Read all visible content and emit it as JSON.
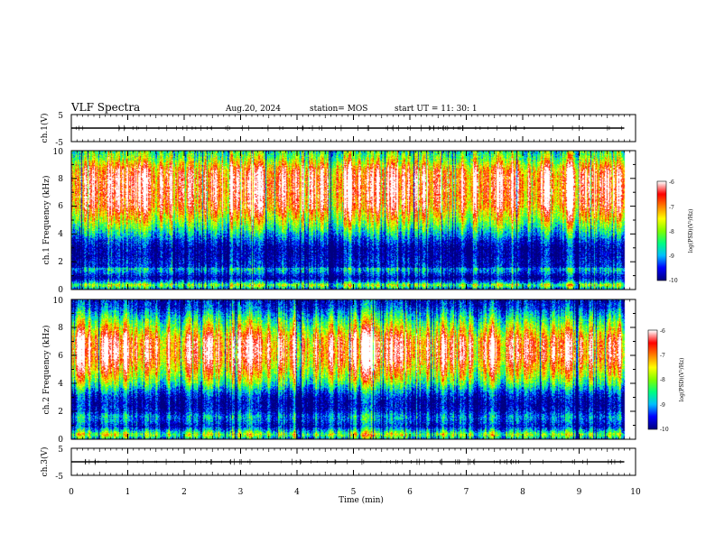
{
  "header": {
    "title": "VLF Spectra",
    "date": "Aug.20, 2024",
    "station": "station= MOS",
    "start_ut": "start  UT =   11: 30: 1"
  },
  "chart_data": [
    {
      "type": "line",
      "name": "ch1-voltage",
      "ylabel": "ch.1(V)",
      "ylim": [
        -5,
        5
      ],
      "yticks": [
        "5",
        "-5"
      ],
      "xlim": [
        0,
        10
      ],
      "trace_level": 0,
      "trace_color": "#000000"
    },
    {
      "type": "heatmap",
      "name": "ch1-spectrogram",
      "ylabel": "ch.1 Frequency (kHz)",
      "ylim": [
        0,
        10
      ],
      "yticks": [
        "0",
        "2",
        "4",
        "6",
        "8",
        "10"
      ],
      "xlim": [
        0,
        10
      ],
      "data_end_min": 9.8,
      "band_profile": [
        [
          0.0,
          0.25
        ],
        [
          0.3,
          0.55
        ],
        [
          0.5,
          0.25
        ],
        [
          0.8,
          0.05
        ],
        [
          1.0,
          0.1
        ],
        [
          1.3,
          0.25
        ],
        [
          1.5,
          0.3
        ],
        [
          1.6,
          0.1
        ],
        [
          2.0,
          0.1
        ],
        [
          2.4,
          0.05
        ],
        [
          3.0,
          0.05
        ],
        [
          3.5,
          0.15
        ],
        [
          4.0,
          0.3
        ],
        [
          4.5,
          0.45
        ],
        [
          5.0,
          0.6
        ],
        [
          5.5,
          0.72
        ],
        [
          6.0,
          0.85
        ],
        [
          7.0,
          0.92
        ],
        [
          8.0,
          0.92
        ],
        [
          8.6,
          0.85
        ],
        [
          9.0,
          0.7
        ],
        [
          9.4,
          0.55
        ],
        [
          9.8,
          0.45
        ],
        [
          10.0,
          0.4
        ]
      ],
      "colorbar": {
        "label": "log(PSD)(V²/Hz)",
        "ticks": [
          "-6",
          "-7",
          "-8",
          "-9",
          "-10"
        ],
        "range": [
          -10,
          -6
        ]
      }
    },
    {
      "type": "heatmap",
      "name": "ch2-spectrogram",
      "ylabel": "ch.2 Frequency (kHz)",
      "ylim": [
        0,
        10
      ],
      "yticks": [
        "0",
        "2",
        "4",
        "6",
        "8",
        "10"
      ],
      "xlim": [
        0,
        10
      ],
      "data_end_min": 9.8,
      "band_profile": [
        [
          0.0,
          0.3
        ],
        [
          0.3,
          0.55
        ],
        [
          0.6,
          0.3
        ],
        [
          0.9,
          0.1
        ],
        [
          1.3,
          0.2
        ],
        [
          1.6,
          0.25
        ],
        [
          2.0,
          0.1
        ],
        [
          2.5,
          0.05
        ],
        [
          3.0,
          0.1
        ],
        [
          3.5,
          0.25
        ],
        [
          4.0,
          0.45
        ],
        [
          4.5,
          0.6
        ],
        [
          5.0,
          0.72
        ],
        [
          5.5,
          0.82
        ],
        [
          6.0,
          0.9
        ],
        [
          7.0,
          0.88
        ],
        [
          7.5,
          0.75
        ],
        [
          8.0,
          0.6
        ],
        [
          8.5,
          0.45
        ],
        [
          9.0,
          0.3
        ],
        [
          9.5,
          0.15
        ],
        [
          10.0,
          0.1
        ]
      ],
      "colorbar": {
        "label": "log(PSD)(V²/Hz)",
        "ticks": [
          "-6",
          "-7",
          "-8",
          "-9",
          "-10"
        ],
        "range": [
          -10,
          -6
        ]
      }
    },
    {
      "type": "line",
      "name": "ch3-voltage",
      "ylabel": "ch.3(V)",
      "ylim": [
        -5,
        5
      ],
      "yticks": [
        "5",
        "-5"
      ],
      "xlim": [
        0,
        10
      ],
      "trace_level": 0,
      "trace_color": "#000000"
    }
  ],
  "xaxis": {
    "label": "Time  (min)",
    "ticks": [
      "0",
      "1",
      "2",
      "3",
      "4",
      "5",
      "6",
      "7",
      "8",
      "9",
      "10"
    ]
  },
  "colors": {
    "colormap": [
      "#000080",
      "#0000ff",
      "#00c0ff",
      "#00ff80",
      "#80ff00",
      "#ffff00",
      "#ff8000",
      "#ff0000",
      "#ffffff"
    ]
  }
}
